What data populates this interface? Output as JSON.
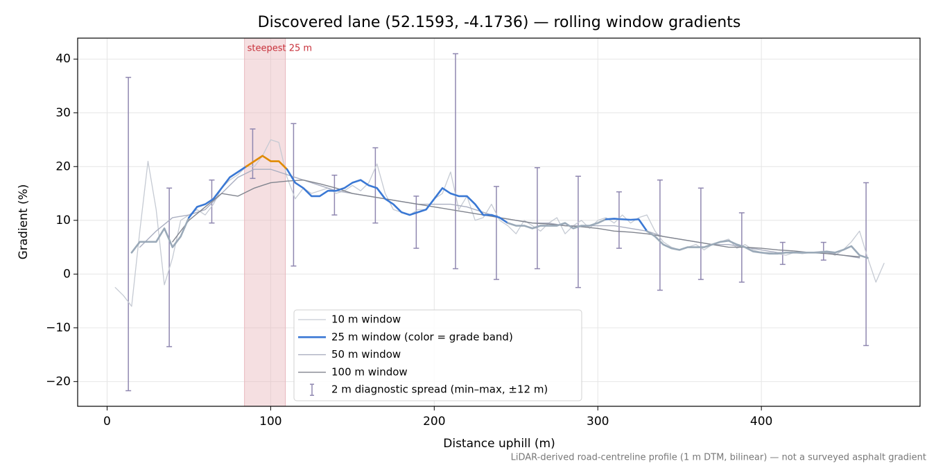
{
  "chart_data": {
    "type": "line",
    "title": "Discovered lane (52.1593, -4.1736) — rolling window gradients",
    "x_label": "Distance uphill (m)",
    "y_label": "Gradient (%)",
    "footnote": "LiDAR-derived road-centreline profile (1 m DTM, bilinear) — not a surveyed asphalt gradient",
    "xlim": [
      -18,
      497
    ],
    "ylim": [
      -24.6,
      43.9
    ],
    "xticks": [
      0,
      100,
      200,
      300,
      400
    ],
    "yticks": [
      {
        "value": -20,
        "label": "−20"
      },
      {
        "value": -10,
        "label": "−10"
      },
      0,
      10,
      20,
      30,
      40
    ],
    "grid": true,
    "legend": "lower center",
    "highlight": {
      "x": [
        84,
        109
      ],
      "label": "steepest 25 m",
      "color": "#e8b7bd",
      "label_color": "#c8303a"
    },
    "series": [
      {
        "name": "10 m window",
        "color": "#c5cad3",
        "width": 1.3,
        "x": [
          5,
          10,
          15,
          20,
          25,
          30,
          35,
          40,
          45,
          50,
          55,
          60,
          65,
          70,
          75,
          80,
          85,
          90,
          95,
          100,
          105,
          110,
          115,
          120,
          125,
          130,
          135,
          140,
          145,
          150,
          155,
          160,
          165,
          170,
          175,
          180,
          185,
          190,
          195,
          200,
          205,
          210,
          215,
          220,
          225,
          230,
          235,
          240,
          245,
          250,
          255,
          260,
          265,
          270,
          275,
          280,
          285,
          290,
          295,
          300,
          305,
          310,
          315,
          320,
          325,
          330,
          335,
          340,
          345,
          350,
          355,
          360,
          365,
          370,
          375,
          380,
          385,
          390,
          395,
          400,
          405,
          410,
          415,
          420,
          425,
          430,
          435,
          440,
          445,
          450,
          455,
          460,
          465,
          470,
          475
        ],
        "values": [
          -2.5,
          -4,
          -6,
          8,
          21,
          12,
          -2,
          3,
          10,
          11,
          12,
          11,
          13,
          16,
          17.5,
          18.5,
          20,
          20,
          22,
          25,
          24.5,
          18,
          14,
          16,
          15,
          15.5,
          16,
          15,
          15.5,
          16.5,
          15.5,
          17,
          20.5,
          15,
          12,
          11.5,
          11,
          12,
          12,
          14,
          15,
          19,
          12,
          14.5,
          10,
          10.5,
          13,
          10,
          9,
          7.5,
          10,
          9,
          8,
          9.5,
          10.5,
          7.5,
          9,
          10,
          8.5,
          10,
          10.5,
          9.5,
          11,
          9.5,
          10.5,
          11,
          8,
          6,
          5,
          4.5,
          5,
          5.5,
          4.5,
          5.5,
          6,
          6.5,
          4.8,
          5.5,
          4.5,
          4,
          4,
          3.8,
          3.5,
          4,
          3.8,
          4,
          4.2,
          4.3,
          3.5,
          4.5,
          6,
          8,
          3,
          -1.5,
          2
        ]
      },
      {
        "name": "25 m window (color = grade band)",
        "color": "#3a78d4",
        "width": 2.6,
        "band_edges": [
          10,
          20
        ],
        "band_colors": [
          "#9aa9b8",
          "#3a78d4",
          "#e08a00"
        ],
        "x": [
          15,
          20,
          25,
          30,
          35,
          40,
          45,
          50,
          55,
          60,
          65,
          70,
          75,
          80,
          85,
          90,
          95,
          100,
          105,
          110,
          115,
          120,
          125,
          130,
          135,
          140,
          145,
          150,
          155,
          160,
          165,
          170,
          175,
          180,
          185,
          190,
          195,
          200,
          205,
          210,
          215,
          220,
          225,
          230,
          235,
          240,
          245,
          250,
          255,
          260,
          265,
          270,
          275,
          280,
          285,
          290,
          295,
          300,
          305,
          310,
          315,
          320,
          325,
          330,
          335,
          340,
          345,
          350,
          355,
          360,
          365,
          370,
          375,
          380,
          385,
          390,
          395,
          400,
          405,
          410,
          415,
          420,
          425,
          430,
          435,
          440,
          445,
          450,
          455,
          460,
          465
        ],
        "values": [
          4,
          6,
          6,
          6,
          8.5,
          5,
          7,
          10.5,
          12.5,
          13,
          14,
          16,
          18,
          19,
          20,
          21,
          22,
          21,
          21,
          19.5,
          17,
          16,
          14.5,
          14.5,
          15.5,
          15.5,
          16,
          17,
          17.5,
          16.5,
          16,
          14,
          13,
          11.5,
          11,
          11.5,
          12,
          14,
          16,
          15,
          14.5,
          14.5,
          13,
          11,
          11,
          10.5,
          9.5,
          9,
          9,
          8.5,
          9,
          9,
          9,
          9.5,
          8.5,
          9,
          9,
          9.5,
          10.2,
          10.3,
          10.2,
          10.1,
          10.2,
          8,
          7,
          5.5,
          4.8,
          4.5,
          5,
          5,
          5,
          5.5,
          6,
          6.2,
          5.5,
          5,
          4.2,
          4,
          3.8,
          3.8,
          4,
          4,
          4,
          4,
          4,
          4.2,
          4,
          4.5,
          5.2,
          3.5,
          3
        ]
      },
      {
        "name": "50 m window",
        "color": "#a9aec0",
        "width": 1.4,
        "x": [
          20,
          30,
          40,
          50,
          60,
          70,
          80,
          90,
          100,
          110,
          120,
          130,
          140,
          150,
          160,
          170,
          180,
          190,
          200,
          210,
          220,
          230,
          240,
          250,
          260,
          270,
          280,
          290,
          300,
          310,
          320,
          330,
          340,
          350,
          360,
          370,
          380,
          390,
          400,
          410,
          420,
          430,
          440,
          450,
          460
        ],
        "values": [
          5,
          8,
          10.5,
          11,
          12,
          15,
          18,
          19.5,
          19.5,
          18.5,
          17.5,
          16.5,
          15.5,
          15,
          14.5,
          14,
          13.5,
          13,
          13,
          13,
          12.5,
          11.5,
          10.5,
          10,
          9.5,
          9.5,
          9,
          9,
          9,
          9,
          8.5,
          8,
          7,
          6.5,
          6,
          5.5,
          5.5,
          5,
          4.5,
          4,
          4,
          4,
          4,
          3.5,
          3
        ]
      },
      {
        "name": "100 m window",
        "color": "#80848e",
        "width": 1.4,
        "x": [
          40,
          50,
          60,
          70,
          80,
          90,
          100,
          110,
          120,
          130,
          140,
          150,
          160,
          170,
          180,
          190,
          200,
          210,
          220,
          230,
          240,
          250,
          260,
          270,
          280,
          290,
          300,
          310,
          320,
          330,
          340,
          350,
          360,
          370,
          380,
          390,
          400,
          410,
          420,
          430,
          440,
          450,
          460
        ],
        "values": [
          6,
          10,
          12.5,
          15,
          14.5,
          16,
          17,
          17.3,
          17.5,
          16.8,
          16,
          15,
          14.5,
          14,
          13.5,
          13,
          12.5,
          12,
          11.5,
          11,
          10.5,
          10,
          9.5,
          9.3,
          9,
          8.8,
          8.5,
          8,
          7.8,
          7.5,
          7,
          6.5,
          6,
          5.5,
          5,
          5,
          4.8,
          4.5,
          4.3,
          4,
          3.8,
          3.5,
          3.2
        ]
      }
    ],
    "error_bars": {
      "name": "2 m diagnostic spread (min–max, ±12 m)",
      "color": "#8f87b0",
      "x": [
        13,
        38,
        64,
        89,
        114,
        139,
        164,
        189,
        213,
        238,
        263,
        288,
        313,
        338,
        363,
        388,
        413,
        438,
        464
      ],
      "low": [
        -21.7,
        -13.5,
        9.5,
        17.8,
        1.5,
        11,
        9.5,
        4.8,
        1,
        -1,
        1,
        -2.5,
        4.8,
        -3,
        -1,
        -1.5,
        1.8,
        2.6,
        -13.3
      ],
      "high": [
        36.6,
        16,
        17.5,
        27,
        28,
        18.4,
        23.5,
        14.5,
        41,
        16.3,
        19.8,
        18.2,
        15.3,
        17.5,
        16,
        11.4,
        5.9,
        5.9,
        17
      ]
    }
  }
}
